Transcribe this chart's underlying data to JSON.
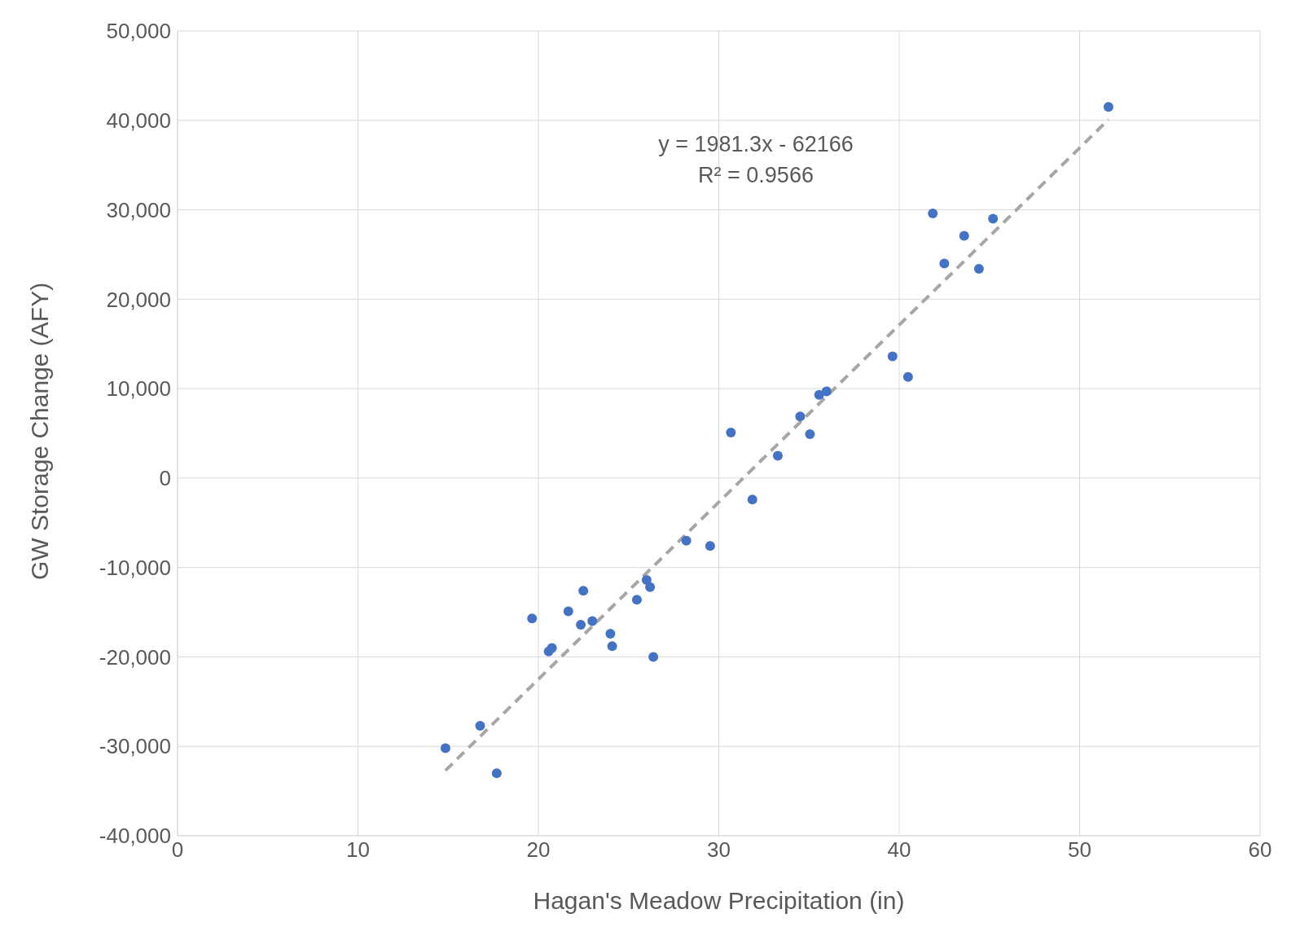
{
  "chart_data": {
    "type": "scatter",
    "xlabel": "Hagan's Meadow Precipitation (in)",
    "ylabel": "GW Storage Change (AFY)",
    "x": [
      14.85,
      16.77,
      17.69,
      19.65,
      20.57,
      20.75,
      21.66,
      22.49,
      22.35,
      22.99,
      23.99,
      24.09,
      25.46,
      26.0,
      26.19,
      26.37,
      28.2,
      29.52,
      30.67,
      31.86,
      33.27,
      34.51,
      35.05,
      35.56,
      35.97,
      39.63,
      40.49,
      41.86,
      42.5,
      43.6,
      44.42,
      45.2,
      51.6
    ],
    "series": [
      {
        "color": "#4472c4",
        "values": [
          -30200,
          -27700,
          -33000,
          -15700,
          -19400,
          -19000,
          -14900,
          -12600,
          -16400,
          -16000,
          -17400,
          -18800,
          -13600,
          -11400,
          -12200,
          -20000,
          -7000,
          -7600,
          5100,
          -2400,
          2500,
          6900,
          4900,
          9300,
          9700,
          13600,
          11300,
          29600,
          24000,
          27100,
          23400,
          29000,
          41500
        ]
      },
      {
        "type": "line",
        "color": "#a6a6a6",
        "line_style": "dashed",
        "marker": "none",
        "x": [
          14.85,
          51.6
        ],
        "values": [
          -32700,
          40100
        ]
      }
    ],
    "annotations": [
      "y = 1981.3x - 62166",
      "R² = 0.9566"
    ],
    "xlim": [
      0,
      60
    ],
    "xticks": [
      0,
      10,
      20,
      30,
      40,
      50,
      60
    ],
    "ylim": [
      -40000,
      50000
    ],
    "yticks": [
      {
        "value": -40000,
        "label": "-40,000"
      },
      {
        "value": -30000,
        "label": "-30,000"
      },
      {
        "value": -20000,
        "label": "-20,000"
      },
      {
        "value": -10000,
        "label": "-10,000"
      },
      0,
      {
        "value": 10000,
        "label": "10,000"
      },
      {
        "value": 20000,
        "label": "20,000"
      },
      {
        "value": 30000,
        "label": "30,000"
      },
      {
        "value": 40000,
        "label": "40,000"
      },
      {
        "value": 50000,
        "label": "50,000"
      }
    ],
    "grid": true,
    "marker": "circle",
    "legend": false
  }
}
